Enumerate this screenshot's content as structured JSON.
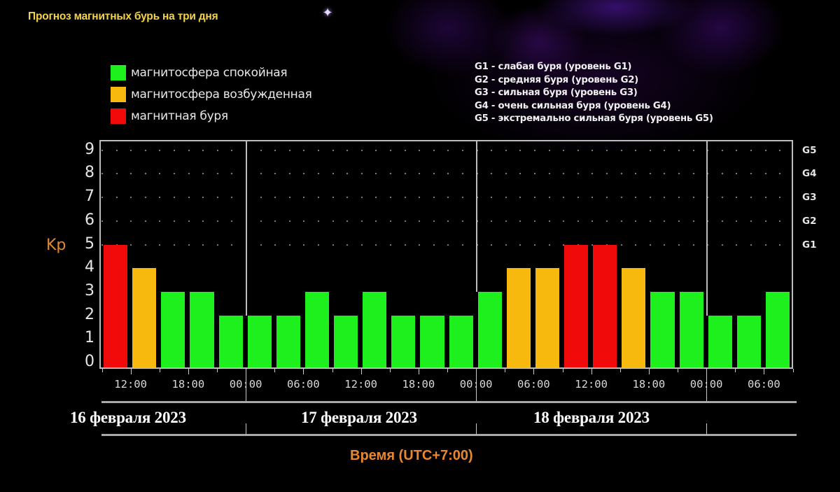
{
  "header": {
    "title": "Прогноз магнитных бурь на три дня"
  },
  "legend": {
    "items": [
      {
        "label": "магнитосфера спокойная",
        "color": "#1ef01e"
      },
      {
        "label": "магнитосфера возбужденная",
        "color": "#f7b90d"
      },
      {
        "label": "магнитная буря",
        "color": "#f00a0a"
      }
    ]
  },
  "storm_levels": {
    "items": [
      "G1 - слабая буря (уровень G1)",
      "G2 - средняя буря (уровень G2)",
      "G3 - сильная буря (уровень G3)",
      "G4 - очень сильная буря (уровень G4)",
      "G5 - экстремально сильная буря (уровень G5)"
    ]
  },
  "axes": {
    "y_label": "Kp",
    "x_label": "Время (UTC+7:00)",
    "y_ticks": [
      "0",
      "1",
      "2",
      "3",
      "4",
      "5",
      "6",
      "7",
      "8",
      "9"
    ],
    "g_ticks": [
      {
        "label": "G1",
        "kp": 5
      },
      {
        "label": "G2",
        "kp": 6
      },
      {
        "label": "G3",
        "kp": 7
      },
      {
        "label": "G4",
        "kp": 8
      },
      {
        "label": "G5",
        "kp": 9
      }
    ],
    "x_ticks": [
      "12:00",
      "18:00",
      "00:00",
      "06:00",
      "12:00",
      "18:00",
      "00:00",
      "06:00",
      "12:00",
      "18:00",
      "00:00",
      "06:00"
    ],
    "dates": [
      "16 февраля 2023",
      "17 февраля 2023",
      "18 февраля 2023"
    ]
  },
  "colors": {
    "quiet": "#1ef01e",
    "active": "#f7b90d",
    "storm": "#f00a0a"
  },
  "chart_data": {
    "type": "bar",
    "title": "Прогноз магнитных бурь на три дня",
    "xlabel": "Время (UTC+7:00)",
    "ylabel": "Kp",
    "ylim": [
      0,
      9
    ],
    "grid": true,
    "legend_position": "top-left",
    "categories": [
      "16.02 09:00",
      "16.02 12:00",
      "16.02 15:00",
      "16.02 18:00",
      "16.02 21:00",
      "17.02 00:00",
      "17.02 03:00",
      "17.02 06:00",
      "17.02 09:00",
      "17.02 12:00",
      "17.02 15:00",
      "17.02 18:00",
      "17.02 21:00",
      "18.02 00:00",
      "18.02 03:00",
      "18.02 06:00",
      "18.02 09:00",
      "18.02 12:00",
      "18.02 15:00",
      "18.02 18:00",
      "18.02 21:00",
      "19.02 00:00",
      "19.02 03:00",
      "19.02 06:00"
    ],
    "values": [
      5,
      4,
      3,
      3,
      2,
      2,
      2,
      3,
      2,
      3,
      2,
      2,
      2,
      3,
      4,
      4,
      5,
      5,
      4,
      3,
      3,
      2,
      2,
      3
    ],
    "status": [
      "storm",
      "active",
      "quiet",
      "quiet",
      "quiet",
      "quiet",
      "quiet",
      "quiet",
      "quiet",
      "quiet",
      "quiet",
      "quiet",
      "quiet",
      "quiet",
      "active",
      "active",
      "storm",
      "storm",
      "active",
      "quiet",
      "quiet",
      "quiet",
      "quiet",
      "quiet"
    ],
    "secondary_axis": {
      "G1": 5,
      "G2": 6,
      "G3": 7,
      "G4": 8,
      "G5": 9
    },
    "day_labels": [
      "16 февраля 2023",
      "17 февраля 2023",
      "18 февраля 2023"
    ]
  }
}
